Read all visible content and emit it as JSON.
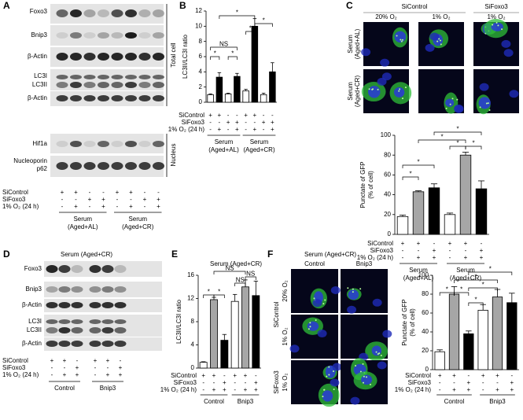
{
  "panel_a": {
    "letter": "A",
    "rows": [
      "Foxo3",
      "Bnip3",
      "β-Actin",
      "LC3I",
      "LC3II",
      "β-Actin",
      "Hif1a",
      "Nucleoporin",
      "p62"
    ],
    "sections": [
      "Total cell",
      "Nucleus"
    ],
    "conditions": [
      {
        "label": "SiControl",
        "signs": [
          "+",
          "+",
          "-",
          "-",
          "+",
          "+",
          "-",
          "-"
        ]
      },
      {
        "label": "SiFoxo3",
        "signs": [
          "-",
          "-",
          "+",
          "+",
          "-",
          "-",
          "+",
          "+"
        ]
      },
      {
        "label": "1% O₂ (24 h)",
        "signs": [
          "-",
          "+",
          "-",
          "+",
          "-",
          "+",
          "-",
          "+"
        ]
      }
    ],
    "groups": [
      [
        "Serum",
        "(Aged+AL)"
      ],
      [
        "Serum",
        "(Aged+CR)"
      ]
    ]
  },
  "panel_c_images": {
    "letter": "C",
    "columns": [
      "SiControl",
      "SiFoxo3"
    ],
    "subcolumns": [
      "20% O₂",
      "1% O₂",
      "1% O₂"
    ],
    "rows": [
      [
        "Serum",
        "(Aged+AL)"
      ],
      [
        "Serum",
        "(Aged+CR)"
      ]
    ]
  },
  "panel_d": {
    "letter": "D",
    "title": "Serum (Aged+CR)",
    "rows": [
      "Foxo3",
      "Bnip3",
      "β-Actin",
      "LC3I",
      "LC3II",
      "β-Actin"
    ],
    "conditions": [
      {
        "label": "SiControl",
        "signs": [
          "+",
          "+",
          "-",
          "+",
          "+",
          "-"
        ]
      },
      {
        "label": "SiFoxo3",
        "signs": [
          "-",
          "-",
          "+",
          "-",
          "-",
          "+"
        ]
      },
      {
        "label": "1% O₂ (24 h)",
        "signs": [
          "-",
          "+",
          "+",
          "-",
          "+",
          "+"
        ]
      }
    ],
    "groups": [
      [
        "Control"
      ],
      [
        "Bnip3"
      ]
    ]
  },
  "panel_f_images": {
    "letter": "F",
    "title": "Serum (Aged+CR)",
    "columns": [
      "Control",
      "Bnip3"
    ],
    "row_groups": [
      "SiControl",
      "SiFoxo3"
    ],
    "rows": [
      "20% O₂",
      "1% O₂",
      "1% O₂"
    ]
  },
  "chart_data": [
    {
      "type": "bar",
      "panel": "B",
      "y_label": [
        "LC3II/LC3I ratio"
      ],
      "categories": [
        null,
        null,
        null,
        null,
        null,
        null,
        null,
        null
      ],
      "values": [
        1.0,
        3.3,
        1.1,
        3.4,
        1.5,
        10.0,
        1.0,
        4.0
      ],
      "errors": [
        0.1,
        0.6,
        0.1,
        0.4,
        0.2,
        1.0,
        0.2,
        1.2
      ],
      "colors": [
        "#ffffff",
        "#000000",
        "#ffffff",
        "#000000",
        "#ffffff",
        "#000000",
        "#ffffff",
        "#000000"
      ],
      "ylim": [
        0,
        12
      ],
      "yticks": [
        0,
        2,
        4,
        6,
        8,
        10,
        12
      ],
      "conditions": [
        {
          "label": "SiControl",
          "signs": [
            "+",
            "+",
            "-",
            "-",
            "+",
            "+",
            "-",
            "-"
          ]
        },
        {
          "label": "SiFoxo3",
          "signs": [
            "-",
            "-",
            "+",
            "+",
            "-",
            "-",
            "+",
            "+"
          ]
        },
        {
          "label": "1% O₂ (24 h)",
          "signs": [
            "-",
            "+",
            "-",
            "+",
            "-",
            "+",
            "-",
            "+"
          ]
        }
      ],
      "groups": [
        [
          "Serum",
          "(Aged+AL)"
        ],
        [
          "Serum",
          "(Aged+CR)"
        ]
      ],
      "annotations": [
        "*",
        "*",
        "NS",
        "*",
        "*",
        "*"
      ]
    },
    {
      "type": "bar",
      "y_label": [
        "Punctate of GFP",
        "(% of cell)"
      ],
      "categories": [
        null,
        null,
        null,
        null,
        null,
        null
      ],
      "values": [
        18,
        43,
        47,
        20,
        80,
        46
      ],
      "errors": [
        1.5,
        1,
        4,
        1.5,
        3,
        8
      ],
      "colors": [
        "#ffffff",
        "#a6a6a6",
        "#000000",
        "#ffffff",
        "#a6a6a6",
        "#000000"
      ],
      "ylim": [
        0,
        100
      ],
      "yticks": [
        0,
        20,
        40,
        60,
        80,
        100
      ],
      "conditions": [
        {
          "label": "SiControl",
          "signs": [
            "+",
            "+",
            "-",
            "+",
            "+",
            "-"
          ]
        },
        {
          "label": "SiFoxo3",
          "signs": [
            "-",
            "-",
            "+",
            "-",
            "-",
            "+"
          ]
        },
        {
          "label": "1% O₂ (24 h)",
          "signs": [
            "-",
            "+",
            "+",
            "-",
            "+",
            "+"
          ]
        }
      ],
      "groups": [
        [
          "Serum",
          "(Aged+AL)"
        ],
        [
          "Serum",
          "(Aged+CR)"
        ]
      ],
      "annotations": [
        "*",
        "*",
        "*",
        "*",
        "*",
        "*"
      ]
    },
    {
      "type": "bar",
      "panel": "E",
      "title": "Serum (Aged+CR)",
      "y_label": [
        "LC3II/LC3I ratio"
      ],
      "categories": [
        null,
        null,
        null,
        null,
        null,
        null
      ],
      "values": [
        1,
        11.8,
        4.8,
        11.5,
        14,
        12.5
      ],
      "errors": [
        0.1,
        0.4,
        1.0,
        1.2,
        1.2,
        2.5
      ],
      "colors": [
        "#ffffff",
        "#a6a6a6",
        "#000000",
        "#ffffff",
        "#a6a6a6",
        "#000000"
      ],
      "ylim": [
        0,
        16
      ],
      "yticks": [
        0,
        4,
        8,
        12,
        16
      ],
      "conditions": [
        {
          "label": "SiControl",
          "signs": [
            "+",
            "+",
            "-",
            "+",
            "+",
            "-"
          ]
        },
        {
          "label": "SiFoxo3",
          "signs": [
            "-",
            "-",
            "+",
            "-",
            "-",
            "+"
          ]
        },
        {
          "label": "1% O₂ (24 h)",
          "signs": [
            "-",
            "+",
            "+",
            "-",
            "+",
            "+"
          ]
        }
      ],
      "groups": [
        [
          "Control"
        ],
        [
          "Bnip3"
        ]
      ],
      "annotations": [
        "*",
        "*",
        "NS",
        "NS",
        "NS"
      ]
    },
    {
      "type": "bar",
      "y_label": [
        "Punctate of GFP",
        "(% of cell)"
      ],
      "categories": [
        null,
        null,
        null,
        null,
        null,
        null
      ],
      "values": [
        19,
        80,
        38,
        63,
        77,
        71
      ],
      "errors": [
        2,
        8,
        3,
        6,
        8,
        10
      ],
      "colors": [
        "#ffffff",
        "#a6a6a6",
        "#000000",
        "#ffffff",
        "#a6a6a6",
        "#000000"
      ],
      "ylim": [
        0,
        100
      ],
      "yticks": [
        0,
        20,
        40,
        60,
        80,
        100
      ],
      "conditions": [
        {
          "label": "SiControl",
          "signs": [
            "+",
            "+",
            "-",
            "+",
            "+",
            "-"
          ]
        },
        {
          "label": "SiFoxo3",
          "signs": [
            "-",
            "-",
            "+",
            "-",
            "-",
            "+"
          ]
        },
        {
          "label": "1% O₂ (24 h)",
          "signs": [
            "-",
            "+",
            "+",
            "-",
            "+",
            "+"
          ]
        }
      ],
      "groups": [
        [
          "Control"
        ],
        [
          "Bnip3"
        ]
      ],
      "annotations": [
        "*",
        "*",
        "*",
        "*",
        "*",
        "*"
      ]
    }
  ]
}
